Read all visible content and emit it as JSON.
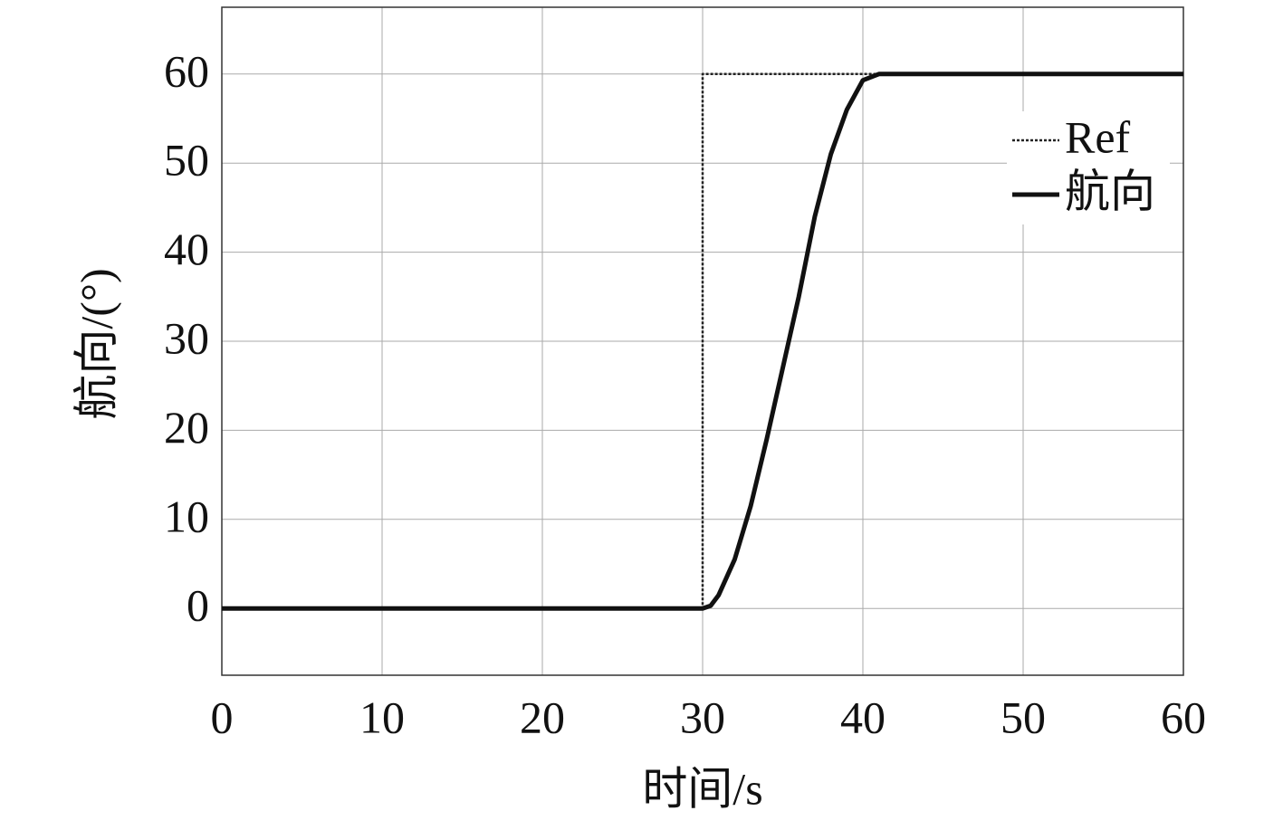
{
  "chart_data": {
    "type": "line",
    "x_label": "时间/s",
    "y_label": "航向/(°)",
    "xlim": [
      0,
      60
    ],
    "ylim": [
      -7.5,
      67.5
    ],
    "xticks": [
      0,
      10,
      20,
      30,
      40,
      50,
      60
    ],
    "yticks": [
      0,
      10,
      20,
      30,
      40,
      50,
      60
    ],
    "grid": true,
    "legend": "upper-right",
    "series": [
      {
        "name": "Ref",
        "color": "#222222",
        "style": "dotted",
        "x": [
          0,
          30,
          30,
          60
        ],
        "values": [
          0,
          0,
          60,
          60
        ]
      },
      {
        "name": "航向",
        "color": "#111111",
        "style": "solid",
        "x": [
          0,
          30,
          30.5,
          31,
          32,
          33,
          34,
          35,
          36,
          37,
          38,
          39,
          40,
          41,
          60
        ],
        "values": [
          0,
          0,
          0.3,
          1.5,
          5.5,
          11.5,
          19,
          27,
          35,
          44,
          51,
          56,
          59.3,
          60,
          60
        ]
      }
    ]
  }
}
